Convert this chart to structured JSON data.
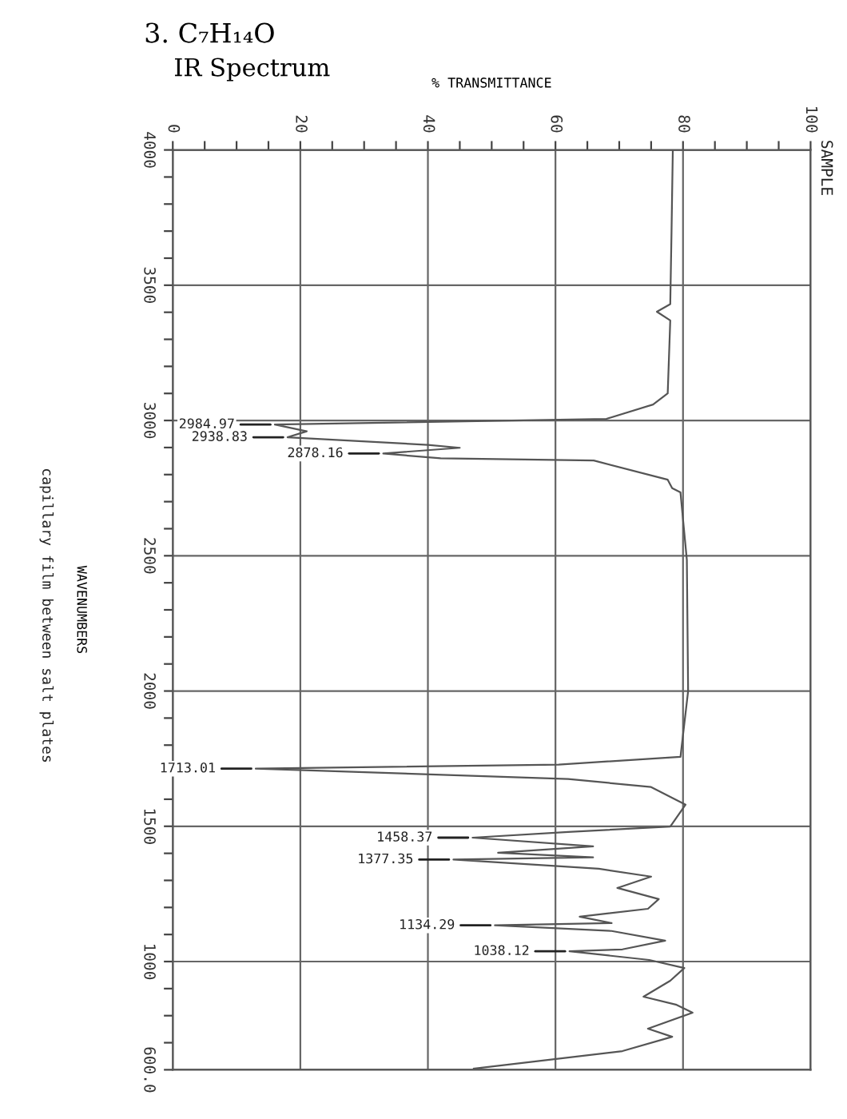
{
  "chart_data": {
    "type": "line",
    "title": "3. C₇H₁₄O",
    "subtitle": "IR Spectrum",
    "xlabel": "% TRANSMITTANCE",
    "ylabel": "WAVENUMBERS",
    "xlim": [
      0,
      100
    ],
    "ylim": [
      600,
      4000
    ],
    "xticks": [
      0,
      {
        "value": 5,
        "label": null
      },
      {
        "value": 10,
        "label": null
      },
      {
        "value": 15,
        "label": null
      },
      20,
      {
        "value": 25,
        "label": null
      },
      {
        "value": 30,
        "label": null
      },
      {
        "value": 35,
        "label": null
      },
      40,
      {
        "value": 45,
        "label": null
      },
      {
        "value": 50,
        "label": null
      },
      {
        "value": 55,
        "label": null
      },
      60,
      {
        "value": 65,
        "label": null
      },
      {
        "value": 70,
        "label": null
      },
      {
        "value": 75,
        "label": null
      },
      80,
      {
        "value": 85,
        "label": null
      },
      {
        "value": 90,
        "label": null
      },
      {
        "value": 95,
        "label": null
      },
      100
    ],
    "yticks": [
      4000,
      {
        "value": 3900,
        "label": null
      },
      {
        "value": 3800,
        "label": null
      },
      {
        "value": 3700,
        "label": null
      },
      {
        "value": 3600,
        "label": null
      },
      3500,
      {
        "value": 3400,
        "label": null
      },
      {
        "value": 3300,
        "label": null
      },
      {
        "value": 3200,
        "label": null
      },
      {
        "value": 3100,
        "label": null
      },
      3000,
      {
        "value": 2900,
        "label": null
      },
      {
        "value": 2800,
        "label": null
      },
      {
        "value": 2700,
        "label": null
      },
      {
        "value": 2600,
        "label": null
      },
      2500,
      {
        "value": 2400,
        "label": null
      },
      {
        "value": 2300,
        "label": null
      },
      {
        "value": 2200,
        "label": null
      },
      {
        "value": 2100,
        "label": null
      },
      2000,
      {
        "value": 1900,
        "label": null
      },
      {
        "value": 1800,
        "label": null
      },
      {
        "value": 1700,
        "label": null
      },
      {
        "value": 1600,
        "label": null
      },
      1500,
      {
        "value": 1400,
        "label": null
      },
      {
        "value": 1300,
        "label": null
      },
      {
        "value": 1200,
        "label": null
      },
      {
        "value": 1100,
        "label": null
      },
      1000,
      {
        "value": 900,
        "label": null
      },
      {
        "value": 800,
        "label": null
      },
      {
        "value": 700,
        "label": null
      },
      {
        "value": 600,
        "label": "600.0"
      }
    ],
    "grid": true,
    "marker": "none",
    "line_style": "solid",
    "series": [
      {
        "color": "#555555",
        "x": [
          78.4,
          78.2,
          78.0,
          75.9,
          78.0,
          77.6,
          75.3,
          68,
          16,
          21,
          18,
          40,
          45,
          33,
          42,
          66,
          77.6,
          78.3,
          79.6,
          80.6,
          80.8,
          79.6,
          60.5,
          13,
          62,
          75,
          80.4,
          78,
          62,
          47,
          65.9,
          51,
          65.9,
          44,
          66.8,
          75,
          69.7,
          76.2,
          74.5,
          63.8,
          68.8,
          50.5,
          68.8,
          77.2,
          70.5,
          62.2,
          74.7,
          80.2,
          78,
          73.8,
          79,
          81.5,
          74.5,
          78.3,
          70.5,
          47.2
        ],
        "values": [
          4000,
          3700,
          3430,
          3402,
          3370,
          3100,
          3059,
          3006,
          2985,
          2960,
          2938,
          2910,
          2899,
          2878,
          2860,
          2852,
          2781,
          2750,
          2734,
          2485,
          2000,
          1757,
          1728,
          1713,
          1675,
          1645,
          1580,
          1499,
          1479,
          1458,
          1426,
          1402,
          1385,
          1377,
          1343,
          1314,
          1272,
          1231,
          1195,
          1166,
          1142,
          1134,
          1113,
          1077,
          1045,
          1038,
          1006,
          976,
          929,
          870,
          840,
          811,
          752,
          722,
          669,
          604
        ]
      }
    ],
    "annotations": [
      {
        "text": "2984.97",
        "x": 16,
        "y": 2985
      },
      {
        "text": "2938.83",
        "x": 18,
        "y": 2938
      },
      {
        "text": "2878.16",
        "x": 33,
        "y": 2878
      },
      {
        "text": "1713.01",
        "x": 13,
        "y": 1713
      },
      {
        "text": "1458.37",
        "x": 47,
        "y": 1458
      },
      {
        "text": "1377.35",
        "x": 44,
        "y": 1377
      },
      {
        "text": "1134.29",
        "x": 50.5,
        "y": 1134
      },
      {
        "text": "1038.12",
        "x": 62.2,
        "y": 1038
      },
      "SAMPLE",
      "capillary film between salt plates"
    ]
  }
}
